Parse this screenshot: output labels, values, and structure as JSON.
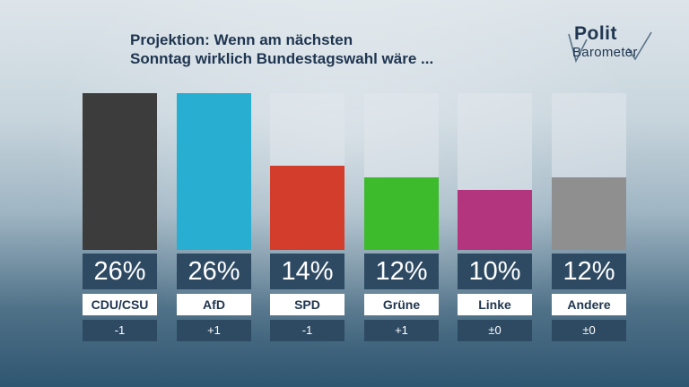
{
  "title": {
    "line1": "Projektion: Wenn am nächsten",
    "line2": "Sonntag wirklich Bundestagswahl wäre ..."
  },
  "logo": {
    "line1": "Polit",
    "line2": "Barometer"
  },
  "chart_data": {
    "type": "bar",
    "categories": [
      "CDU/CSU",
      "AfD",
      "SPD",
      "Grüne",
      "Linke",
      "Andere"
    ],
    "values": [
      26,
      26,
      14,
      12,
      10,
      12
    ],
    "value_labels": [
      "26%",
      "26%",
      "14%",
      "12%",
      "10%",
      "12%"
    ],
    "changes": [
      "-1",
      "+1",
      "-1",
      "+1",
      "±0",
      "±0"
    ],
    "colors": [
      "#3c3c3c",
      "#27aed0",
      "#d33d2c",
      "#3dbb2c",
      "#b2357d",
      "#8f8f8f"
    ],
    "ylim": [
      0,
      26
    ]
  }
}
